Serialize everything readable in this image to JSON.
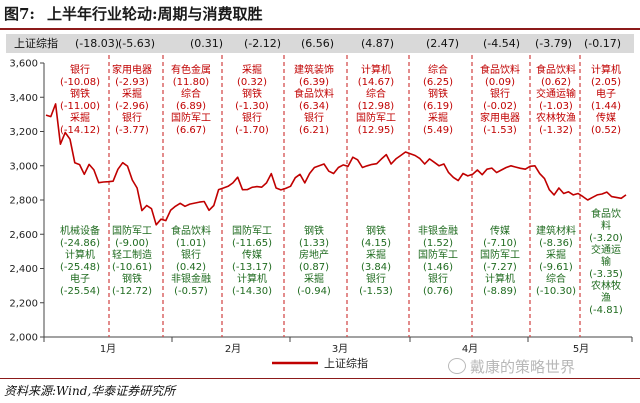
{
  "title": {
    "number": "图7:",
    "text": "上半年行业轮动:周期与消费取胜"
  },
  "header": {
    "label": "上证综指",
    "changes": [
      "(-18.03)",
      "(-5.63)",
      "(0.31)",
      "(-2.12)",
      "(6.56)",
      "(4.87)",
      "(2.47)",
      "(-4.54)",
      "(-3.79)",
      "(-0.17)"
    ]
  },
  "source": "资料来源:Wind,华泰证券研究所",
  "watermark": "戴康的策略世界",
  "colors": {
    "line": "#c00000",
    "up": "#c00000",
    "down": "#1f6b1f",
    "divider": "#d04040",
    "header_bg": "#d9d9d9"
  },
  "chart_data": {
    "type": "line",
    "ylim": [
      2000,
      3600
    ],
    "yticks": [
      "2,000",
      "2,200",
      "2,400",
      "2,600",
      "2,800",
      "3,000",
      "3,200",
      "3,400",
      "3,600"
    ],
    "ytick_values": [
      2000,
      2200,
      2400,
      2600,
      2800,
      3000,
      3200,
      3400,
      3600
    ],
    "x_month_labels": [
      "1月",
      "2月",
      "3月",
      "4月",
      "5月"
    ],
    "legend": "上证综指",
    "series": [
      {
        "name": "上证综指",
        "values": [
          3296,
          3287,
          3361,
          3126,
          3194,
          3155,
          3017,
          3007,
          2950,
          3008,
          2976,
          2901,
          2905,
          2907,
          2910,
          2979,
          3018,
          2998,
          2917,
          2870,
          2738,
          2768,
          2749,
          2655,
          2688,
          2680,
          2740,
          2763,
          2781,
          2763,
          2776,
          2782,
          2788,
          2791,
          2740,
          2768,
          2861,
          2870,
          2880,
          2900,
          2933,
          2860,
          2861,
          2874,
          2878,
          2875,
          2900,
          2954,
          2870,
          2859,
          2868,
          2880,
          2930,
          2950,
          2900,
          2955,
          2990,
          3000,
          3010,
          2968,
          2955,
          2990,
          3005,
          2996,
          3050,
          3035,
          2990,
          3000,
          3008,
          3012,
          3040,
          3065,
          3010,
          3040,
          3060,
          3080,
          3070,
          3060,
          3042,
          3010,
          3040,
          3020,
          3000,
          3010,
          2960,
          2932,
          2913,
          2955,
          2941,
          2950,
          2975,
          2948,
          2980,
          2986,
          2960,
          2975,
          2990,
          3000,
          2992,
          2985,
          2980,
          2997,
          3000,
          2954,
          2925,
          2860,
          2830,
          2870,
          2838,
          2848,
          2830,
          2838,
          2820,
          2800,
          2815,
          2830,
          2835,
          2846,
          2820,
          2815,
          2810,
          2830
        ]
      }
    ],
    "periods": [
      {
        "up": [
          "银行",
          "(-10.08)",
          "钢铁",
          "(-11.00)",
          "采掘",
          "(-14.12)"
        ],
        "down": [
          "机械设备",
          "(-24.86)",
          "计算机",
          "(-25.48)",
          "电子",
          "(-25.54)"
        ]
      },
      {
        "up": [
          "家用电器",
          "(-2.93)",
          "采掘",
          "(-2.96)",
          "银行",
          "(-3.77)"
        ],
        "down": [
          "国防军工",
          "(-9.00)",
          "轻工制造",
          "(-10.61)",
          "钢铁",
          "(-12.72)"
        ]
      },
      {
        "up": [
          "有色金属",
          "(11.80)",
          "综合",
          "(6.89)",
          "国防军工",
          "(6.67)"
        ],
        "down": [
          "食品饮料",
          "(1.01)",
          "银行",
          "(0.42)",
          "非银金融",
          "(-0.57)"
        ]
      },
      {
        "up": [
          "采掘",
          "(0.32)",
          "钢铁",
          "(-1.30)",
          "银行",
          "(-1.70)"
        ],
        "down": [
          "国防军工",
          "(-11.65)",
          "传媒",
          "(-13.17)",
          "计算机",
          "(-14.30)"
        ]
      },
      {
        "up": [
          "建筑装饰",
          "(6.39)",
          "食品饮料",
          "(6.34)",
          "银行",
          "(6.21)"
        ],
        "down": [
          "钢铁",
          "(1.33)",
          "房地产",
          "(0.87)",
          "采掘",
          "(-0.94)"
        ]
      },
      {
        "up": [
          "计算机",
          "(14.67)",
          "综合",
          "(12.98)",
          "国防军工",
          "(12.95)"
        ],
        "down": [
          "钢铁",
          "(4.15)",
          "采掘",
          "(3.84)",
          "银行",
          "(-1.53)"
        ]
      },
      {
        "up": [
          "综合",
          "(6.25)",
          "钢铁",
          "(6.19)",
          "采掘",
          "(5.49)"
        ],
        "down": [
          "非银金融",
          "(1.52)",
          "国防军工",
          "(1.46)",
          "银行",
          "(0.76)"
        ]
      },
      {
        "up": [
          "食品饮料",
          "(0.09)",
          "银行",
          "(-0.02)",
          "家用电器",
          "(-1.53)"
        ],
        "down": [
          "传媒",
          "(-7.10)",
          "国防军工",
          "(-7.27)",
          "计算机",
          "(-8.89)"
        ]
      },
      {
        "up": [
          "食品饮料",
          "(0.62)",
          "交通运输",
          "(-1.03)",
          "农林牧渔",
          "(-1.32)"
        ],
        "down": [
          "建筑材料",
          "(-8.36)",
          "采掘",
          "(-9.61)",
          "综合",
          "(-10.30)"
        ]
      },
      {
        "up": [
          "计算机",
          "(2.05)",
          "电子",
          "(1.44)",
          "传媒",
          "(0.52)"
        ],
        "down": [
          "食品饮",
          "料",
          "(-3.20)",
          "交通运",
          "输",
          "(-3.35)",
          "农林牧",
          "渔",
          "(-4.81)"
        ]
      }
    ]
  }
}
